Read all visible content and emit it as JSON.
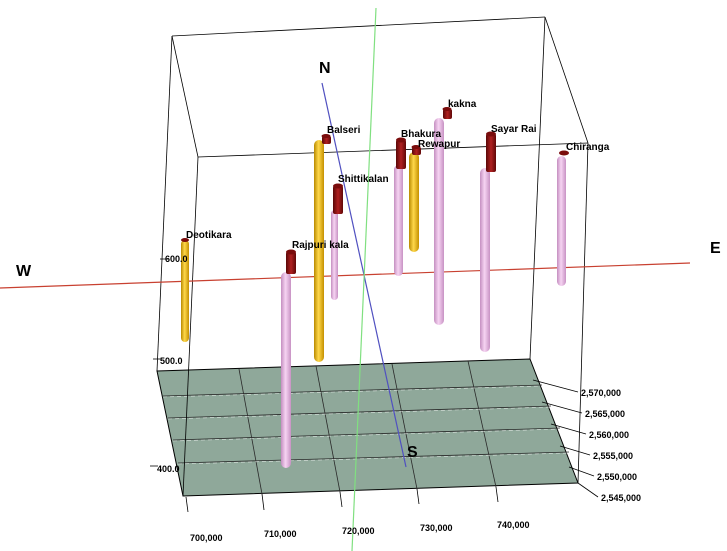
{
  "compass": {
    "north": "N",
    "south": "S",
    "east": "E",
    "west": "W"
  },
  "depth_labels": [
    "600.0",
    "500.0",
    "400.0"
  ],
  "x_ticks": [
    "700,000",
    "710,000",
    "720,000",
    "730,000",
    "740,000"
  ],
  "y_ticks": [
    "2,570,000",
    "2,565,000",
    "2,560,000",
    "2,555,000",
    "2,550,000",
    "2,545,000"
  ],
  "wells": [
    {
      "name": "Deotikara",
      "color": "yellow"
    },
    {
      "name": "Rajpuri kala",
      "color": "pink"
    },
    {
      "name": "Balseri",
      "color": "yellow"
    },
    {
      "name": "Shittikalan",
      "color": "pink"
    },
    {
      "name": "Bhakura",
      "color": "pink"
    },
    {
      "name": "Rewapur",
      "color": "yellow"
    },
    {
      "name": "kakna",
      "color": "pink"
    },
    {
      "name": "Sayar Rai",
      "color": "pink"
    },
    {
      "name": "Chiranga",
      "color": "pink"
    }
  ],
  "colors": {
    "base_plane": "#8fa89a",
    "yellow_well": "#f0c020",
    "pink_well": "#ecb8e6",
    "well_cap": "#8b1010",
    "east_west_axis": "#c84030",
    "north_south_axis": "#5050c0",
    "vertical_axis": "#80e080"
  }
}
